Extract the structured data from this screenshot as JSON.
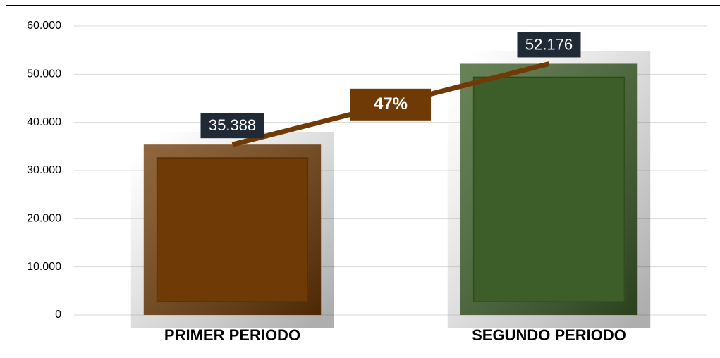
{
  "chart_data": {
    "type": "bar",
    "categories": [
      "PRIMER PERIODO",
      "SEGUNDO PERIODO"
    ],
    "values": [
      35388,
      52176
    ],
    "value_labels": [
      "35.388",
      "52.176"
    ],
    "colors": [
      "#6f3a06",
      "#3d5e28"
    ],
    "annotation": "47%",
    "ylim": [
      0,
      60000
    ],
    "yticks": [
      0,
      {
        "value": 10000,
        "label": "10.000"
      },
      {
        "value": 20000,
        "label": "20.000"
      },
      {
        "value": 30000,
        "label": "30.000"
      },
      {
        "value": 40000,
        "label": "40.000"
      },
      {
        "value": 50000,
        "label": "50.000"
      },
      {
        "value": 60000,
        "label": "60.000"
      }
    ],
    "grid": true
  }
}
